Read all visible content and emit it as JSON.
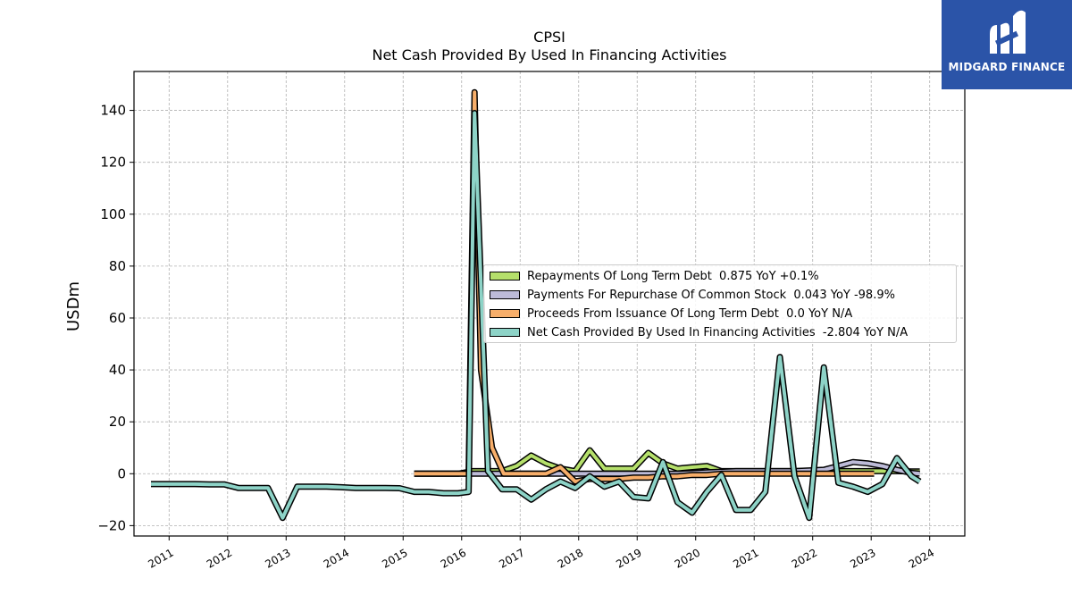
{
  "title": "CPSI",
  "subtitle": "Net Cash Provided By Used In Financing Activities",
  "logo": {
    "text": "MIDGARD FINANCE",
    "bg": "#2b54a8"
  },
  "chart_data": {
    "type": "line",
    "ylabel": "USDm",
    "ylim": [
      -24,
      155
    ],
    "xlim": [
      2010.4,
      2024.6
    ],
    "yticks": [
      -20,
      0,
      20,
      40,
      60,
      80,
      100,
      120,
      140
    ],
    "ytick_labels": [
      "−20",
      "0",
      "20",
      "40",
      "60",
      "80",
      "100",
      "120",
      "140"
    ],
    "xticks": [
      2011,
      2012,
      2013,
      2014,
      2015,
      2016,
      2017,
      2018,
      2019,
      2020,
      2021,
      2022,
      2023,
      2024
    ],
    "xtick_labels": [
      "2011",
      "2012",
      "2013",
      "2014",
      "2015",
      "2016",
      "2017",
      "2018",
      "2019",
      "2020",
      "2021",
      "2022",
      "2023",
      "2024"
    ],
    "grid": true,
    "legend_position": "center-right",
    "series": [
      {
        "name": "Repayments Of Long Term Debt  0.875 YoY +0.1%",
        "color": "#b5e06b",
        "points": [
          [
            2015.19,
            0
          ],
          [
            2015.44,
            0
          ],
          [
            2015.69,
            0
          ],
          [
            2015.94,
            0
          ],
          [
            2016.19,
            1
          ],
          [
            2016.44,
            1
          ],
          [
            2016.69,
            1
          ],
          [
            2016.94,
            3
          ],
          [
            2017.19,
            7
          ],
          [
            2017.44,
            4
          ],
          [
            2017.69,
            2
          ],
          [
            2017.94,
            1
          ],
          [
            2018.19,
            9
          ],
          [
            2018.44,
            2
          ],
          [
            2018.69,
            2
          ],
          [
            2018.94,
            2
          ],
          [
            2019.19,
            8
          ],
          [
            2019.44,
            4
          ],
          [
            2019.69,
            2
          ],
          [
            2019.94,
            2.5
          ],
          [
            2020.19,
            3
          ],
          [
            2020.44,
            1
          ],
          [
            2020.69,
            1
          ],
          [
            2020.94,
            1
          ],
          [
            2021.19,
            1
          ],
          [
            2021.44,
            1
          ],
          [
            2021.69,
            1
          ],
          [
            2021.94,
            1
          ],
          [
            2022.19,
            1
          ],
          [
            2022.44,
            1
          ],
          [
            2022.69,
            1
          ],
          [
            2022.94,
            1
          ],
          [
            2023.19,
            1
          ],
          [
            2023.44,
            1
          ],
          [
            2023.69,
            0.9
          ],
          [
            2023.83,
            0.9
          ]
        ]
      },
      {
        "name": "Payments For Repurchase Of Common Stock  0.043 YoY -98.9%",
        "color": "#bdbbd8",
        "points": [
          [
            2015.19,
            0
          ],
          [
            2015.69,
            0
          ],
          [
            2016.19,
            0
          ],
          [
            2016.69,
            0
          ],
          [
            2017.19,
            0
          ],
          [
            2017.69,
            0
          ],
          [
            2018.19,
            0
          ],
          [
            2018.69,
            0
          ],
          [
            2019.19,
            0
          ],
          [
            2019.69,
            0
          ],
          [
            2020.19,
            0.5
          ],
          [
            2020.69,
            1
          ],
          [
            2021.19,
            1
          ],
          [
            2021.69,
            1
          ],
          [
            2022.19,
            1.5
          ],
          [
            2022.44,
            3
          ],
          [
            2022.69,
            4.5
          ],
          [
            2022.94,
            4
          ],
          [
            2023.19,
            3
          ],
          [
            2023.44,
            1.5
          ],
          [
            2023.69,
            0.3
          ],
          [
            2023.83,
            0.04
          ]
        ]
      },
      {
        "name": "Proceeds From Issuance Of Long Term Debt  0.0 YoY N/A",
        "color": "#f7ae6a",
        "points": [
          [
            2015.19,
            0
          ],
          [
            2015.44,
            0
          ],
          [
            2015.69,
            0
          ],
          [
            2015.94,
            0
          ],
          [
            2016.12,
            0
          ],
          [
            2016.22,
            147
          ],
          [
            2016.33,
            40
          ],
          [
            2016.52,
            10
          ],
          [
            2016.72,
            0
          ],
          [
            2016.94,
            0
          ],
          [
            2017.19,
            0
          ],
          [
            2017.44,
            0
          ],
          [
            2017.69,
            2.5
          ],
          [
            2017.94,
            -3
          ],
          [
            2018.19,
            -2
          ],
          [
            2018.44,
            -2
          ],
          [
            2018.69,
            -2
          ],
          [
            2018.94,
            -1.5
          ],
          [
            2019.19,
            -1.5
          ],
          [
            2019.44,
            -1
          ],
          [
            2019.69,
            -1
          ],
          [
            2019.94,
            -0.5
          ],
          [
            2020.19,
            -0.5
          ],
          [
            2020.44,
            0
          ],
          [
            2020.69,
            0
          ],
          [
            2020.94,
            0
          ],
          [
            2021.19,
            0
          ],
          [
            2021.44,
            0
          ],
          [
            2021.69,
            0
          ],
          [
            2021.94,
            0
          ],
          [
            2022.19,
            0
          ],
          [
            2022.44,
            0
          ],
          [
            2022.69,
            0
          ],
          [
            2022.94,
            0
          ],
          [
            2023.05,
            0
          ]
        ]
      },
      {
        "name": "Net Cash Provided By Used In Financing Activities  -2.804 YoY N/A",
        "color": "#8dd3c7",
        "points": [
          [
            2010.69,
            -4
          ],
          [
            2010.94,
            -4
          ],
          [
            2011.19,
            -4
          ],
          [
            2011.44,
            -4
          ],
          [
            2011.69,
            -4.1
          ],
          [
            2011.94,
            -4.1
          ],
          [
            2012.19,
            -5.5
          ],
          [
            2012.44,
            -5.5
          ],
          [
            2012.69,
            -5.5
          ],
          [
            2012.94,
            -17
          ],
          [
            2013.19,
            -5
          ],
          [
            2013.44,
            -5
          ],
          [
            2013.69,
            -5
          ],
          [
            2013.94,
            -5.2
          ],
          [
            2014.19,
            -5.5
          ],
          [
            2014.44,
            -5.5
          ],
          [
            2014.69,
            -5.5
          ],
          [
            2014.94,
            -5.6
          ],
          [
            2015.19,
            -7
          ],
          [
            2015.44,
            -7
          ],
          [
            2015.69,
            -7.5
          ],
          [
            2015.94,
            -7.5
          ],
          [
            2016.12,
            -7
          ],
          [
            2016.22,
            139
          ],
          [
            2016.45,
            1
          ],
          [
            2016.69,
            -6
          ],
          [
            2016.94,
            -6
          ],
          [
            2017.19,
            -10
          ],
          [
            2017.44,
            -6
          ],
          [
            2017.69,
            -3
          ],
          [
            2017.94,
            -5.5
          ],
          [
            2018.19,
            -1
          ],
          [
            2018.44,
            -5
          ],
          [
            2018.69,
            -3
          ],
          [
            2018.94,
            -9
          ],
          [
            2019.19,
            -9.5
          ],
          [
            2019.44,
            4.5
          ],
          [
            2019.69,
            -11
          ],
          [
            2019.94,
            -15
          ],
          [
            2020.19,
            -7
          ],
          [
            2020.44,
            -0.5
          ],
          [
            2020.69,
            -14
          ],
          [
            2020.94,
            -14
          ],
          [
            2021.19,
            -7
          ],
          [
            2021.44,
            45
          ],
          [
            2021.69,
            -1
          ],
          [
            2021.94,
            -17
          ],
          [
            2022.19,
            41
          ],
          [
            2022.44,
            -3.5
          ],
          [
            2022.69,
            -5
          ],
          [
            2022.94,
            -7
          ],
          [
            2023.19,
            -4
          ],
          [
            2023.44,
            6
          ],
          [
            2023.69,
            -1
          ],
          [
            2023.83,
            -3
          ]
        ]
      }
    ]
  }
}
